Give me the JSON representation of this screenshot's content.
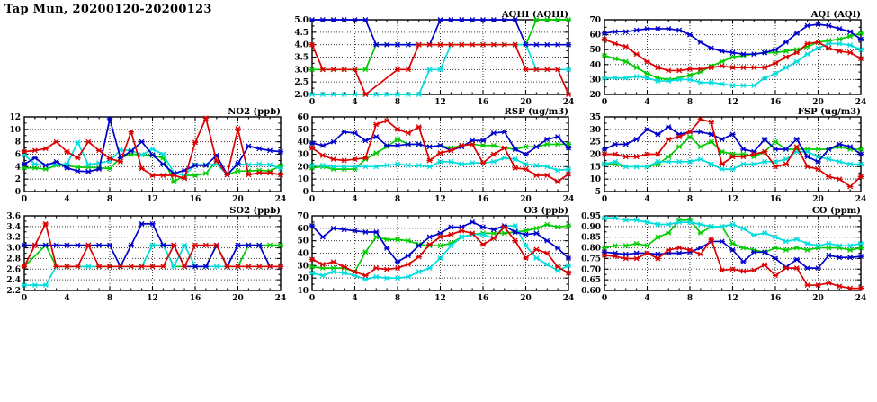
{
  "title": "Tap Mun, 20200120-20200123",
  "colors": {
    "blue": "#0000cc",
    "red": "#dd0000",
    "green": "#00cc00",
    "cyan": "#00dddd",
    "frame": "#000000",
    "grid": "#3a3a3a",
    "background": "#ffffff",
    "text": "#000000"
  },
  "chart_data": [
    {
      "id": "aqhi",
      "type": "line",
      "title": "AQHI (AQHI)",
      "xlim": [
        0,
        24
      ],
      "xtick_step": 4,
      "xminor_step": 1,
      "x_range": [
        0,
        24,
        1
      ],
      "ylim": [
        2.0,
        5.0
      ],
      "ytick_step": 0.5,
      "yminor_step": 0.25,
      "ydecimals": 1,
      "grid": true,
      "legend": "none",
      "series": [
        {
          "name": "green",
          "values": [
            3,
            3,
            3,
            3,
            3,
            3,
            4,
            4,
            4,
            4,
            4,
            4,
            4,
            4,
            4,
            4,
            4,
            4,
            4,
            4,
            4,
            5,
            5,
            5,
            5
          ]
        },
        {
          "name": "cyan",
          "values": [
            2,
            2,
            2,
            2,
            2,
            2,
            2,
            2,
            2,
            2,
            2,
            3,
            3,
            4,
            4,
            4,
            4,
            4,
            4,
            4,
            4,
            3,
            3,
            3,
            3
          ]
        },
        {
          "name": "blue",
          "values": [
            5,
            5,
            5,
            5,
            5,
            5,
            4,
            4,
            4,
            4,
            4,
            4,
            5,
            5,
            5,
            5,
            5,
            5,
            5,
            5,
            4,
            4,
            4,
            4,
            4
          ]
        },
        {
          "name": "red",
          "values": [
            4,
            3,
            3,
            3,
            3,
            2,
            null,
            null,
            3,
            3,
            4,
            4,
            4,
            4,
            4,
            4,
            4,
            4,
            4,
            4,
            3,
            3,
            3,
            3,
            2
          ]
        }
      ]
    },
    {
      "id": "aqi",
      "type": "line",
      "title": "AQI (AQI)",
      "xlim": [
        0,
        24
      ],
      "xtick_step": 4,
      "xminor_step": 1,
      "x_range": [
        0,
        24,
        1
      ],
      "ylim": [
        20,
        70
      ],
      "ytick_step": 10,
      "yminor_step": 5,
      "ydecimals": 0,
      "grid": true,
      "legend": "none",
      "series": [
        {
          "name": "green",
          "values": [
            46,
            44,
            42,
            38,
            34,
            31,
            30,
            31,
            33,
            35,
            39,
            42,
            45,
            46,
            47,
            48,
            48,
            49,
            50,
            52,
            55,
            56,
            57,
            59,
            61
          ]
        },
        {
          "name": "cyan",
          "values": [
            31,
            31,
            31,
            32,
            31,
            29,
            29,
            30,
            30,
            28,
            28,
            27,
            26,
            26,
            26,
            31,
            34,
            38,
            42,
            47,
            51,
            54,
            54,
            53,
            50
          ]
        },
        {
          "name": "blue",
          "values": [
            61,
            62,
            62,
            63,
            64,
            64,
            64,
            63,
            60,
            55,
            51,
            49,
            48,
            47,
            47,
            48,
            50,
            55,
            61,
            66,
            67,
            66,
            64,
            62,
            57
          ]
        },
        {
          "name": "red",
          "values": [
            57,
            54,
            52,
            47,
            42,
            38,
            36,
            36,
            37,
            37,
            38,
            39,
            38,
            38,
            38,
            38,
            41,
            45,
            48,
            54,
            55,
            51,
            49,
            48,
            44
          ]
        }
      ]
    },
    {
      "id": "no2",
      "type": "line",
      "title": "NO2 (ppb)",
      "xlim": [
        0,
        24
      ],
      "xtick_step": 4,
      "xminor_step": 1,
      "x_range": [
        0,
        24,
        1
      ],
      "ylim": [
        0,
        12
      ],
      "ytick_step": 2,
      "yminor_step": 1,
      "ydecimals": 0,
      "grid": true,
      "legend": "none",
      "series": [
        {
          "name": "green",
          "values": [
            3.8,
            3.8,
            3.6,
            4.2,
            4.2,
            3.9,
            3.9,
            3.8,
            3.7,
            5.4,
            6.0,
            5.9,
            5.8,
            5.4,
            1.6,
            2.6,
            2.6,
            2.9,
            4.9,
            2.7,
            3.3,
            3.3,
            3.4,
            3.3,
            4.1
          ]
        },
        {
          "name": "cyan",
          "values": [
            5.9,
            4.4,
            4.2,
            4.4,
            4.4,
            7.9,
            4.3,
            4.6,
            4.9,
            6.7,
            6.6,
            5.9,
            6.8,
            6.0,
            3.0,
            2.6,
            4.3,
            4.3,
            4.4,
            2.7,
            4.4,
            4.3,
            4.4,
            4.3,
            3.7
          ]
        },
        {
          "name": "blue",
          "values": [
            4.4,
            5.4,
            4.2,
            4.8,
            3.8,
            3.3,
            3.2,
            3.6,
            11.7,
            5.4,
            6.5,
            8.0,
            5.9,
            4.4,
            2.9,
            3.4,
            4.2,
            4.2,
            5.8,
            2.7,
            4.5,
            7.3,
            6.9,
            6.6,
            6.4
          ]
        },
        {
          "name": "red",
          "values": [
            6.4,
            6.6,
            6.9,
            8.0,
            6.4,
            5.4,
            8.0,
            6.6,
            5.3,
            4.8,
            9.6,
            3.7,
            2.6,
            2.6,
            2.6,
            2.1,
            7.9,
            11.8,
            4.9,
            2.7,
            10.1,
            2.7,
            3.0,
            3.0,
            2.7
          ]
        }
      ]
    },
    {
      "id": "rsp",
      "type": "line",
      "title": "RSP (ug/m3)",
      "xlim": [
        0,
        24
      ],
      "xtick_step": 4,
      "xminor_step": 1,
      "x_range": [
        0,
        24,
        1
      ],
      "ylim": [
        0,
        60
      ],
      "ytick_step": 10,
      "yminor_step": 5,
      "ydecimals": 0,
      "grid": true,
      "legend": "none",
      "series": [
        {
          "name": "green",
          "values": [
            19,
            20,
            18,
            18,
            18,
            26,
            31,
            36,
            42,
            38,
            38,
            36,
            37,
            35,
            37,
            38,
            37,
            37,
            35,
            34,
            36,
            36,
            38,
            38,
            38
          ]
        },
        {
          "name": "cyan",
          "values": [
            21,
            21,
            20,
            20,
            20,
            20,
            20,
            21,
            22,
            21,
            21,
            20,
            24,
            24,
            22,
            23,
            23,
            24,
            27,
            26,
            22,
            21,
            20,
            17,
            18
          ]
        },
        {
          "name": "blue",
          "values": [
            39,
            37,
            40,
            48,
            47,
            41,
            44,
            37,
            37,
            38,
            38,
            36,
            37,
            33,
            36,
            41,
            41,
            47,
            48,
            34,
            30,
            36,
            42,
            44,
            35
          ]
        },
        {
          "name": "red",
          "values": [
            35,
            29,
            26,
            25,
            26,
            27,
            54,
            57,
            50,
            47,
            52,
            25,
            31,
            33,
            37,
            38,
            23,
            30,
            35,
            19,
            18,
            13,
            13,
            8,
            14
          ]
        }
      ]
    },
    {
      "id": "fsp",
      "type": "line",
      "title": "FSP (ug/m3)",
      "xlim": [
        0,
        24
      ],
      "xtick_step": 4,
      "xminor_step": 1,
      "x_range": [
        0,
        24,
        1
      ],
      "ylim": [
        5,
        35
      ],
      "ytick_step": 5,
      "yminor_step": 2.5,
      "ydecimals": 0,
      "grid": true,
      "legend": "none",
      "series": [
        {
          "name": "green",
          "values": [
            16,
            16,
            15,
            15,
            15,
            16,
            19,
            23,
            27,
            23,
            25,
            21,
            20,
            20,
            19,
            21,
            25,
            22,
            22,
            22,
            22,
            22,
            23,
            22,
            22
          ]
        },
        {
          "name": "cyan",
          "values": [
            16,
            17,
            15,
            15,
            15,
            17,
            17,
            17,
            17,
            18,
            16,
            14,
            14,
            16,
            16,
            17,
            17,
            18,
            21,
            21,
            19,
            18,
            17,
            16,
            16
          ]
        },
        {
          "name": "blue",
          "values": [
            22,
            24,
            24,
            26,
            30,
            28,
            31,
            28,
            29,
            29,
            28,
            26,
            28,
            22,
            21,
            26,
            22,
            22,
            26,
            19,
            17,
            22,
            24,
            23,
            20
          ]
        },
        {
          "name": "red",
          "values": [
            20,
            20,
            19,
            19,
            20,
            20,
            26,
            27,
            29,
            34,
            33,
            16,
            19,
            19,
            20,
            21,
            15,
            16,
            23,
            15,
            14,
            11,
            10,
            7,
            11
          ]
        }
      ]
    },
    {
      "id": "so2",
      "type": "line",
      "title": "SO2 (ppb)",
      "xlim": [
        0,
        24
      ],
      "xtick_step": 4,
      "xminor_step": 1,
      "x_range": [
        0,
        24,
        1
      ],
      "ylim": [
        2.2,
        3.6
      ],
      "ytick_step": 0.2,
      "yminor_step": 0.1,
      "ydecimals": 1,
      "grid": true,
      "legend": "none",
      "series": [
        {
          "name": "green",
          "values": [
            2.65,
            null,
            3.05,
            2.65,
            2.65,
            2.65,
            2.65,
            2.65,
            2.65,
            2.65,
            2.65,
            2.65,
            3.05,
            3.05,
            2.65,
            2.65,
            2.65,
            2.65,
            3.05,
            2.65,
            2.65,
            3.05,
            3.05,
            3.05,
            3.05
          ]
        },
        {
          "name": "cyan",
          "values": [
            2.3,
            2.3,
            2.3,
            2.65,
            2.65,
            2.65,
            2.65,
            2.65,
            2.65,
            2.65,
            2.65,
            2.65,
            3.05,
            3.05,
            2.65,
            3.05,
            2.65,
            2.65,
            2.65,
            2.65,
            2.65,
            2.65,
            2.65,
            2.65,
            2.65
          ]
        },
        {
          "name": "blue",
          "values": [
            3.05,
            3.05,
            3.05,
            3.05,
            3.05,
            3.05,
            3.05,
            3.05,
            3.05,
            2.65,
            3.05,
            3.45,
            3.45,
            3.05,
            3.05,
            2.65,
            2.65,
            2.65,
            3.05,
            2.65,
            3.05,
            3.05,
            3.05,
            2.65,
            2.65
          ]
        },
        {
          "name": "red",
          "values": [
            2.65,
            3.05,
            3.45,
            2.65,
            2.65,
            2.65,
            3.05,
            2.65,
            2.65,
            2.65,
            2.65,
            2.65,
            2.65,
            2.65,
            3.05,
            2.65,
            3.05,
            3.05,
            3.05,
            2.65,
            2.65,
            2.65,
            2.65,
            2.65,
            2.65
          ]
        }
      ]
    },
    {
      "id": "o3",
      "type": "line",
      "title": "O3 (ppb)",
      "xlim": [
        0,
        24
      ],
      "xtick_step": 4,
      "xminor_step": 1,
      "x_range": [
        0,
        24,
        1
      ],
      "ylim": [
        10,
        70
      ],
      "ytick_step": 10,
      "yminor_step": 5,
      "ydecimals": 0,
      "grid": true,
      "legend": "none",
      "series": [
        {
          "name": "green",
          "values": [
            29,
            28,
            28,
            28,
            25,
            41,
            53,
            51,
            51,
            50,
            47,
            46,
            46,
            48,
            53,
            55,
            56,
            56,
            56,
            57,
            58,
            60,
            63,
            61,
            62
          ]
        },
        {
          "name": "cyan",
          "values": [
            24,
            22,
            25,
            24,
            22,
            19,
            21,
            20,
            20,
            21,
            25,
            28,
            36,
            46,
            53,
            55,
            55,
            52,
            62,
            62,
            46,
            36,
            31,
            26,
            30
          ]
        },
        {
          "name": "blue",
          "values": [
            62,
            53,
            60,
            59,
            58,
            57,
            57,
            44,
            33,
            38,
            46,
            53,
            56,
            61,
            61,
            65,
            61,
            59,
            62,
            57,
            55,
            56,
            50,
            44,
            36
          ]
        },
        {
          "name": "red",
          "values": [
            35,
            31,
            33,
            29,
            25,
            22,
            28,
            27,
            28,
            31,
            37,
            47,
            53,
            55,
            58,
            56,
            47,
            52,
            61,
            50,
            36,
            43,
            40,
            29,
            24
          ]
        }
      ]
    },
    {
      "id": "co",
      "type": "line",
      "title": "CO (ppm)",
      "xlim": [
        0,
        24
      ],
      "xtick_step": 4,
      "xminor_step": 1,
      "x_range": [
        0,
        24,
        1
      ],
      "ylim": [
        0.6,
        0.95
      ],
      "ytick_step": 0.05,
      "yminor_step": 0.025,
      "ydecimals": 2,
      "grid": true,
      "legend": "none",
      "series": [
        {
          "name": "green",
          "values": [
            0.8,
            0.81,
            0.81,
            0.82,
            0.81,
            0.85,
            0.87,
            0.93,
            0.93,
            0.87,
            0.9,
            0.9,
            0.82,
            0.8,
            0.79,
            0.78,
            0.8,
            0.79,
            0.8,
            0.79,
            0.8,
            0.8,
            0.8,
            0.79,
            0.8
          ]
        },
        {
          "name": "cyan",
          "values": [
            0.94,
            0.94,
            0.93,
            0.93,
            0.92,
            0.91,
            0.91,
            0.92,
            0.92,
            0.91,
            0.9,
            0.9,
            0.91,
            0.89,
            0.86,
            0.87,
            0.85,
            0.83,
            0.84,
            0.82,
            0.81,
            0.82,
            0.81,
            0.81,
            0.82
          ]
        },
        {
          "name": "blue",
          "values": [
            0.78,
            0.775,
            0.77,
            0.775,
            0.775,
            0.77,
            0.775,
            0.775,
            0.78,
            0.8,
            0.83,
            0.83,
            0.79,
            0.735,
            0.78,
            0.78,
            0.75,
            0.71,
            0.745,
            0.705,
            0.705,
            0.765,
            0.755,
            0.755,
            0.76
          ]
        },
        {
          "name": "red",
          "values": [
            0.765,
            0.76,
            0.75,
            0.75,
            0.775,
            0.75,
            0.79,
            0.8,
            0.79,
            0.77,
            0.84,
            0.695,
            0.7,
            0.69,
            0.695,
            0.72,
            0.67,
            0.705,
            0.705,
            0.625,
            0.625,
            0.635,
            0.62,
            0.61,
            0.61
          ]
        }
      ]
    }
  ]
}
